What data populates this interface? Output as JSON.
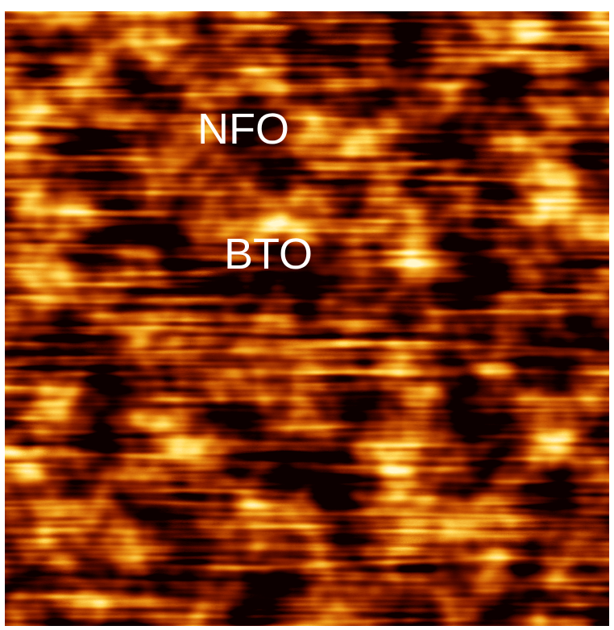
{
  "image": {
    "labels": [
      "NFO",
      "BTO"
    ]
  }
}
